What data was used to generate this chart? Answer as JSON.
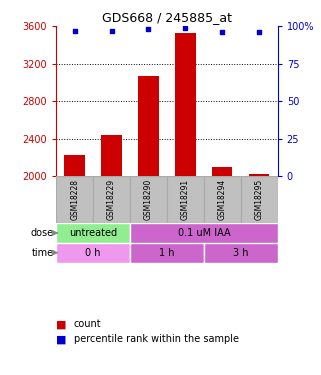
{
  "title": "GDS668 / 245885_at",
  "samples": [
    "GSM18228",
    "GSM18229",
    "GSM18290",
    "GSM18291",
    "GSM18294",
    "GSM18295"
  ],
  "bar_values": [
    2230,
    2440,
    3070,
    3530,
    2100,
    2025
  ],
  "bar_bottom": 2000,
  "bar_color": "#cc0000",
  "dot_values": [
    97,
    97,
    98,
    99,
    96,
    96
  ],
  "dot_color": "#0000cc",
  "ylim_left": [
    2000,
    3600
  ],
  "ylim_right": [
    0,
    100
  ],
  "yticks_left": [
    2000,
    2400,
    2800,
    3200,
    3600
  ],
  "ytick_labels_left": [
    "2000",
    "2400",
    "2800",
    "3200",
    "3600"
  ],
  "yticks_right": [
    0,
    25,
    50,
    75,
    100
  ],
  "ytick_labels_right": [
    "0",
    "25",
    "50",
    "75",
    "100%"
  ],
  "dose_green": "#90ee90",
  "dose_purple": "#cc66cc",
  "time_pink": "#ee99ee",
  "time_purple": "#cc66cc",
  "left_axis_color": "#cc0000",
  "right_axis_color": "#0000cc",
  "legend_count_color": "#cc0000",
  "legend_percentile_color": "#0000cc",
  "background_color": "#ffffff",
  "sample_box_color": "#c0c0c0",
  "sample_box_edge": "#aaaaaa"
}
